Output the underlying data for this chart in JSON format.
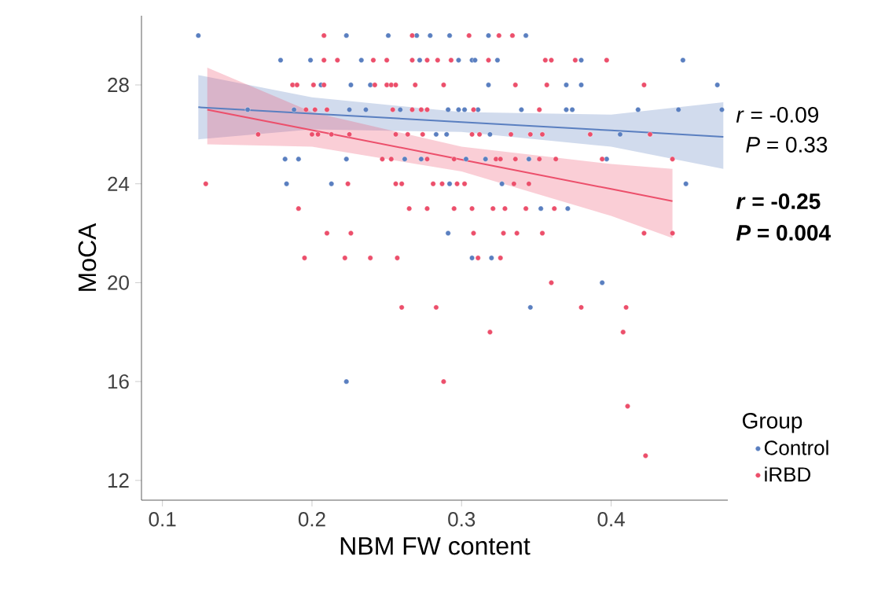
{
  "chart_data": {
    "type": "scatter",
    "xlabel": "NBM FW content",
    "ylabel": "MoCA",
    "legend_title": "Group",
    "legend": "bottom right",
    "xlim": [
      0.086,
      0.478
    ],
    "ylim": [
      11.2,
      30.8
    ],
    "xticks": [
      0.1,
      0.2,
      0.3,
      0.4
    ],
    "yticks": [
      12,
      16,
      20,
      24,
      28
    ],
    "annotations": [
      "*r* = -0.09",
      "*P* = 0.33",
      "*r* = -0.25",
      "*P* = 0.004"
    ],
    "series": [
      {
        "name": "Control",
        "color": "#5a7fc0",
        "marker": "circle",
        "x": [
          0.124,
          0.223,
          0.251,
          0.27,
          0.279,
          0.292,
          0.318,
          0.343,
          0.179,
          0.199,
          0.233,
          0.272,
          0.298,
          0.307,
          0.309,
          0.324,
          0.38,
          0.448,
          0.206,
          0.226,
          0.239,
          0.318,
          0.37,
          0.38,
          0.471,
          0.157,
          0.188,
          0.225,
          0.236,
          0.259,
          0.291,
          0.298,
          0.302,
          0.311,
          0.34,
          0.37,
          0.374,
          0.418,
          0.445,
          0.474,
          0.283,
          0.29,
          0.319,
          0.406,
          0.182,
          0.191,
          0.223,
          0.262,
          0.273,
          0.303,
          0.316,
          0.345,
          0.397,
          0.183,
          0.213,
          0.292,
          0.327,
          0.45,
          0.353,
          0.371,
          0.291,
          0.307,
          0.32,
          0.394,
          0.346,
          0.223
        ],
        "values": [
          30,
          30,
          30,
          30,
          30,
          30,
          30,
          30,
          29,
          29,
          29,
          29,
          29,
          29,
          29,
          29,
          29,
          29,
          28,
          28,
          28,
          28,
          28,
          28,
          28,
          27,
          27,
          27,
          27,
          27,
          27,
          27,
          27,
          27,
          27,
          27,
          27,
          27,
          27,
          27,
          26,
          26,
          26,
          26,
          25,
          25,
          25,
          25,
          25,
          25,
          25,
          25,
          25,
          24,
          24,
          24,
          24,
          24,
          23,
          23,
          22,
          21,
          21,
          20,
          19,
          16
        ]
      },
      {
        "name": "iRBD",
        "color": "#ec4f6b",
        "marker": "circle",
        "x": [
          0.208,
          0.267,
          0.305,
          0.325,
          0.334,
          0.208,
          0.217,
          0.241,
          0.25,
          0.267,
          0.277,
          0.284,
          0.293,
          0.318,
          0.356,
          0.36,
          0.376,
          0.397,
          0.187,
          0.19,
          0.201,
          0.208,
          0.242,
          0.25,
          0.253,
          0.256,
          0.269,
          0.288,
          0.336,
          0.357,
          0.422,
          0.196,
          0.202,
          0.21,
          0.254,
          0.267,
          0.273,
          0.277,
          0.308,
          0.352,
          0.164,
          0.2,
          0.204,
          0.213,
          0.225,
          0.256,
          0.264,
          0.274,
          0.307,
          0.312,
          0.333,
          0.346,
          0.354,
          0.386,
          0.426,
          0.247,
          0.253,
          0.277,
          0.295,
          0.323,
          0.326,
          0.336,
          0.352,
          0.363,
          0.394,
          0.441,
          0.129,
          0.224,
          0.256,
          0.26,
          0.281,
          0.287,
          0.297,
          0.302,
          0.335,
          0.345,
          0.191,
          0.265,
          0.277,
          0.295,
          0.307,
          0.321,
          0.329,
          0.343,
          0.362,
          0.21,
          0.226,
          0.308,
          0.328,
          0.337,
          0.354,
          0.422,
          0.441,
          0.195,
          0.222,
          0.239,
          0.257,
          0.311,
          0.326,
          0.36,
          0.26,
          0.283,
          0.38,
          0.41,
          0.319,
          0.408,
          0.288,
          0.411,
          0.423
        ],
        "values": [
          30,
          30,
          30,
          30,
          30,
          29,
          29,
          29,
          29,
          29,
          29,
          29,
          29,
          29,
          29,
          29,
          29,
          29,
          28,
          28,
          28,
          28,
          28,
          28,
          28,
          28,
          28,
          28,
          28,
          28,
          28,
          27,
          27,
          27,
          27,
          27,
          27,
          27,
          27,
          27,
          26,
          26,
          26,
          26,
          26,
          26,
          26,
          26,
          26,
          26,
          26,
          26,
          26,
          26,
          26,
          25,
          25,
          25,
          25,
          25,
          25,
          25,
          25,
          25,
          25,
          25,
          24,
          24,
          24,
          24,
          24,
          24,
          24,
          24,
          24,
          24,
          23,
          23,
          23,
          23,
          23,
          23,
          23,
          23,
          23,
          22,
          22,
          22,
          22,
          22,
          22,
          22,
          22,
          21,
          21,
          21,
          21,
          21,
          21,
          20,
          19,
          19,
          19,
          19,
          18,
          18,
          16,
          15,
          13
        ]
      },
      {
        "type": "line",
        "color": "#5a7fc0",
        "marker": "none",
        "line_style": "solid",
        "x": [
          0.124,
          0.2,
          0.3,
          0.4,
          0.475
        ],
        "values": [
          27.1,
          26.84,
          26.5,
          26.16,
          25.9
        ],
        "lower": [
          25.8,
          26.2,
          26.1,
          25.5,
          24.6
        ],
        "upper": [
          28.4,
          27.5,
          26.9,
          26.8,
          27.3
        ]
      },
      {
        "type": "line",
        "color": "#ec4f6b",
        "marker": "none",
        "line_style": "solid",
        "x": [
          0.13,
          0.2,
          0.3,
          0.4,
          0.441
        ],
        "values": [
          27.0,
          26.17,
          24.98,
          23.79,
          23.3
        ],
        "lower": [
          25.6,
          25.5,
          24.5,
          22.7,
          21.8
        ],
        "upper": [
          28.7,
          26.9,
          25.5,
          24.8,
          24.6
        ]
      }
    ]
  }
}
